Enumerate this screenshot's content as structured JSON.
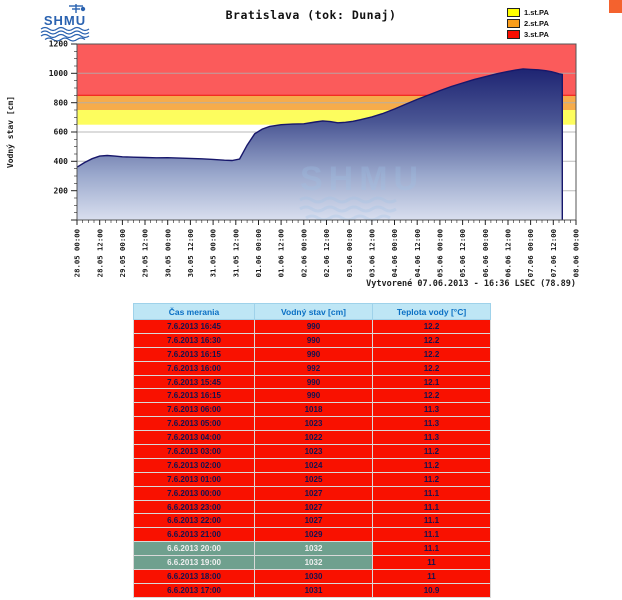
{
  "header": {
    "title": "Bratislava (tok: Dunaj)"
  },
  "logo": {
    "text": "SHMU",
    "color": "#2A62B0"
  },
  "legend": {
    "items": [
      {
        "label": "1.st.PA",
        "color": "#FFFF00"
      },
      {
        "label": "2.st.PA",
        "color": "#FA9E1C"
      },
      {
        "label": "3.st.PA",
        "color": "#F90D00"
      }
    ]
  },
  "chart_data": {
    "type": "area",
    "title": "Bratislava (tok: Dunaj)",
    "ylabel": "Vodný stav [cm]",
    "ylim": [
      0,
      1200
    ],
    "y_ticks": [
      200,
      400,
      600,
      800,
      1000,
      1200
    ],
    "x_range_hours": [
      0,
      264
    ],
    "x_tick_labels": [
      "28.05 00:00",
      "28.05 12:00",
      "29.05 00:00",
      "29.05 12:00",
      "30.05 00:00",
      "30.05 12:00",
      "31.05 00:00",
      "31.05 12:00",
      "01.06 00:00",
      "01.06 12:00",
      "02.06 00:00",
      "02.06 12:00",
      "03.06 00:00",
      "03.06 12:00",
      "04.06 00:00",
      "04.06 12:00",
      "05.06 00:00",
      "05.06 12:00",
      "06.06 00:00",
      "06.06 12:00",
      "07.06 00:00",
      "07.06 12:00",
      "08.06 00:00"
    ],
    "bands": [
      {
        "label": "1.st.PA",
        "from": 650,
        "to": 750,
        "color": "#FDFD5E"
      },
      {
        "label": "2.st.PA",
        "from": 750,
        "to": 850,
        "color": "#F6AC4B"
      },
      {
        "label": "3.st.PA",
        "from": 850,
        "to": 1200,
        "color": "#FB5B5B"
      }
    ],
    "threshold_line": {
      "value": 850,
      "color": "#F21B1B"
    },
    "grid_color": "#AFAFAF",
    "area_outline": "#17176B",
    "area_gradient": [
      "#1E2472",
      "#4A5694",
      "#9AA8CC",
      "#D9DFEF"
    ],
    "series": [
      {
        "name": "Vodný stav",
        "points": [
          [
            0,
            360
          ],
          [
            4,
            392
          ],
          [
            8,
            418
          ],
          [
            12,
            436
          ],
          [
            16,
            440
          ],
          [
            20,
            436
          ],
          [
            24,
            431
          ],
          [
            30,
            428
          ],
          [
            36,
            426
          ],
          [
            42,
            424
          ],
          [
            48,
            425
          ],
          [
            54,
            422
          ],
          [
            60,
            420
          ],
          [
            66,
            417
          ],
          [
            72,
            413
          ],
          [
            78,
            408
          ],
          [
            82,
            406
          ],
          [
            86,
            416
          ],
          [
            90,
            510
          ],
          [
            94,
            588
          ],
          [
            98,
            620
          ],
          [
            102,
            638
          ],
          [
            108,
            650
          ],
          [
            114,
            654
          ],
          [
            120,
            656
          ],
          [
            126,
            668
          ],
          [
            130,
            676
          ],
          [
            134,
            671
          ],
          [
            138,
            663
          ],
          [
            142,
            666
          ],
          [
            146,
            673
          ],
          [
            150,
            684
          ],
          [
            156,
            703
          ],
          [
            162,
            727
          ],
          [
            168,
            757
          ],
          [
            174,
            790
          ],
          [
            180,
            822
          ],
          [
            186,
            852
          ],
          [
            192,
            882
          ],
          [
            198,
            910
          ],
          [
            204,
            934
          ],
          [
            210,
            957
          ],
          [
            216,
            977
          ],
          [
            222,
            997
          ],
          [
            228,
            1013
          ],
          [
            232,
            1022
          ],
          [
            236,
            1030
          ],
          [
            240,
            1027
          ],
          [
            244,
            1024
          ],
          [
            248,
            1018
          ],
          [
            251,
            1011
          ],
          [
            253,
            1004
          ],
          [
            255,
            997
          ],
          [
            256.75,
            992
          ]
        ]
      }
    ],
    "created_text": "Vytvorené 07.06.2013 - 16:36 LSEC (78.89)"
  },
  "table": {
    "headers": [
      "Čas merania",
      "Vodný stav [cm]",
      "Teplota vody [°C]"
    ],
    "colors": {
      "header_bg": "#BEE6F5",
      "header_text": "#0A6FC4",
      "row_bg": "#F91100",
      "row_text": "#131350",
      "highlight_bg": "#6FA08E",
      "highlight_text": "#EFEFEF"
    },
    "rows": [
      {
        "time": "7.6.2013 16:45",
        "level": "990",
        "temp": "12.2",
        "highlight": false
      },
      {
        "time": "7.6.2013 16:30",
        "level": "990",
        "temp": "12.2",
        "highlight": false
      },
      {
        "time": "7.6.2013 16:15",
        "level": "990",
        "temp": "12.2",
        "highlight": false
      },
      {
        "time": "7.6.2013 16:00",
        "level": "992",
        "temp": "12.2",
        "highlight": false
      },
      {
        "time": "7.6.2013 15:45",
        "level": "990",
        "temp": "12.1",
        "highlight": false
      },
      {
        "time": "7.6.2013 16:15",
        "level": "990",
        "temp": "12.2",
        "highlight": false
      },
      {
        "time": "7.6.2013 06:00",
        "level": "1018",
        "temp": "11.3",
        "highlight": false
      },
      {
        "time": "7.6.2013 05:00",
        "level": "1023",
        "temp": "11.3",
        "highlight": false
      },
      {
        "time": "7.6.2013 04:00",
        "level": "1022",
        "temp": "11.3",
        "highlight": false
      },
      {
        "time": "7.6.2013 03:00",
        "level": "1023",
        "temp": "11.2",
        "highlight": false
      },
      {
        "time": "7.6.2013 02:00",
        "level": "1024",
        "temp": "11.2",
        "highlight": false
      },
      {
        "time": "7.6.2013 01:00",
        "level": "1025",
        "temp": "11.2",
        "highlight": false
      },
      {
        "time": "7.6.2013 00:00",
        "level": "1027",
        "temp": "11.1",
        "highlight": false
      },
      {
        "time": "6.6.2013 23:00",
        "level": "1027",
        "temp": "11.1",
        "highlight": false
      },
      {
        "time": "6.6.2013 22:00",
        "level": "1027",
        "temp": "11.1",
        "highlight": false
      },
      {
        "time": "6.6.2013 21:00",
        "level": "1029",
        "temp": "11.1",
        "highlight": false
      },
      {
        "time": "6.6.2013 20:00",
        "level": "1032",
        "temp": "11.1",
        "highlight": true
      },
      {
        "time": "6.6.2013 19:00",
        "level": "1032",
        "temp": "11",
        "highlight": true
      },
      {
        "time": "6.6.2013 18:00",
        "level": "1030",
        "temp": "11",
        "highlight": false
      },
      {
        "time": "6.6.2013 17:00",
        "level": "1031",
        "temp": "10.9",
        "highlight": false
      }
    ]
  }
}
